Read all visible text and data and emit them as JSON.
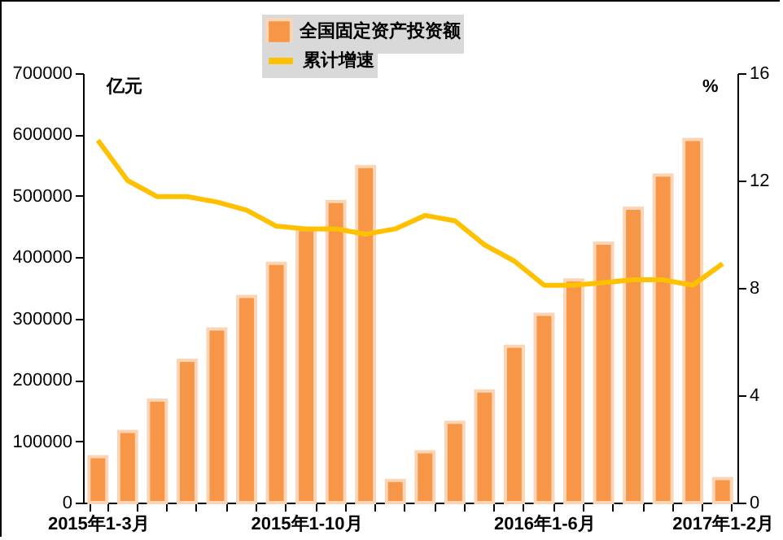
{
  "chart_data": {
    "type": "bar",
    "categories": [
      "2015年1-3月",
      null,
      null,
      null,
      null,
      null,
      null,
      "2015年1-10月",
      null,
      null,
      null,
      null,
      null,
      null,
      null,
      "2016年1-6月",
      null,
      null,
      null,
      null,
      null,
      "2017年1-2月"
    ],
    "ylabel": "亿元",
    "y2label": "%",
    "series": [
      {
        "name": "全国固定资产投资额",
        "color": "#f79646",
        "values": [
          75000,
          116000,
          167000,
          232000,
          283000,
          336000,
          390000,
          445000,
          491000,
          548000,
          36000,
          83000,
          131000,
          182000,
          255000,
          307000,
          363000,
          423000,
          480000,
          534000,
          592000,
          39000
        ]
      },
      {
        "name": "累计增速",
        "type": "line",
        "color": "#ffc000",
        "axis": "y2",
        "values": [
          13.5,
          12.0,
          11.4,
          11.4,
          11.2,
          10.9,
          10.3,
          10.2,
          10.2,
          10.0,
          10.2,
          10.7,
          10.5,
          9.6,
          9.0,
          8.1,
          8.1,
          8.2,
          8.3,
          8.3,
          8.1,
          8.9
        ]
      }
    ],
    "ylim": [
      0,
      700000
    ],
    "yticks": [
      0,
      100000,
      200000,
      300000,
      400000,
      500000,
      600000,
      700000
    ],
    "y2lim": [
      0,
      16
    ],
    "y2ticks": [
      0,
      4,
      8,
      12,
      16
    ],
    "grid": false,
    "legend": "top",
    "marker": "none"
  }
}
